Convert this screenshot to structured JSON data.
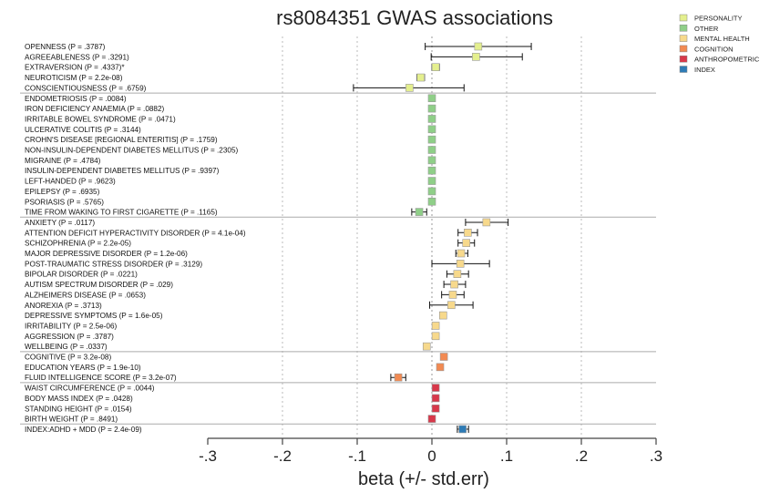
{
  "chart_data": {
    "type": "forest",
    "title": "rs8084351 GWAS associations",
    "xlabel": "beta (+/- std.err)",
    "xlim": [
      -0.3,
      0.3
    ],
    "xticks": [
      -0.3,
      -0.2,
      -0.1,
      0,
      0.1,
      0.2,
      0.3
    ],
    "xtick_labels": [
      "-.3",
      "-.2",
      "-.1",
      "0",
      ".1",
      ".2",
      ".3"
    ],
    "grid": "vertical dotted",
    "legend_position": "top-right",
    "categories": [
      {
        "name": "PERSONALITY",
        "color": "#e4ef8e"
      },
      {
        "name": "OTHER",
        "color": "#8fcf88"
      },
      {
        "name": "MENTAL HEALTH",
        "color": "#f7d98c"
      },
      {
        "name": "COGNITION",
        "color": "#f28a52"
      },
      {
        "name": "ANTHROPOMETRIC",
        "color": "#d8384a"
      },
      {
        "name": "INDEX",
        "color": "#2d7bb6"
      }
    ],
    "rows": [
      {
        "label": "OPENNESS  (P = .3787)",
        "cat": 0,
        "beta": 0.062,
        "lo": -0.009,
        "hi": 0.133
      },
      {
        "label": "AGREEABLENESS  (P = .3291)",
        "cat": 0,
        "beta": 0.059,
        "lo": -0.001,
        "hi": 0.121
      },
      {
        "label": "EXTRAVERSION  (P = .4337)*",
        "cat": 0,
        "beta": 0.005,
        "lo": 0.0,
        "hi": 0.01
      },
      {
        "label": "NEUROTICISM  (P = 2.2e-08)",
        "cat": 0,
        "beta": -0.015,
        "lo": -0.02,
        "hi": -0.01
      },
      {
        "label": "CONSCIENTIOUSNESS  (P = .6759)",
        "cat": 0,
        "beta": -0.03,
        "lo": -0.105,
        "hi": 0.043
      },
      {
        "label": "ENDOMETRIOSIS  (P = .0084)",
        "cat": 1,
        "beta": 0.0,
        "lo": -0.001,
        "hi": 0.001
      },
      {
        "label": "IRON DEFICIENCY ANAEMIA  (P = .0882)",
        "cat": 1,
        "beta": 0.0,
        "lo": -0.001,
        "hi": 0.001
      },
      {
        "label": "IRRITABLE BOWEL SYNDROME  (P = .0471)",
        "cat": 1,
        "beta": 0.0,
        "lo": -0.001,
        "hi": 0.001
      },
      {
        "label": "ULCERATIVE COLITIS  (P = .3144)",
        "cat": 1,
        "beta": 0.0,
        "lo": -0.001,
        "hi": 0.001
      },
      {
        "label": "CROHN'S DISEASE [REGIONAL ENTERITIS]  (P = .1759)",
        "cat": 1,
        "beta": 0.0,
        "lo": -0.001,
        "hi": 0.001
      },
      {
        "label": "NON-INSULIN-DEPENDENT DIABETES MELLITUS  (P = .2305)",
        "cat": 1,
        "beta": 0.0,
        "lo": -0.001,
        "hi": 0.001
      },
      {
        "label": "MIGRAINE  (P = .4784)",
        "cat": 1,
        "beta": 0.0,
        "lo": -0.001,
        "hi": 0.001
      },
      {
        "label": "INSULIN-DEPENDENT DIABETES MELLITUS  (P = .9397)",
        "cat": 1,
        "beta": 0.0,
        "lo": -0.001,
        "hi": 0.001
      },
      {
        "label": "LEFT-HANDED  (P = .9623)",
        "cat": 1,
        "beta": 0.0,
        "lo": -0.001,
        "hi": 0.001
      },
      {
        "label": "EPILEPSY  (P = .6935)",
        "cat": 1,
        "beta": 0.0,
        "lo": -0.001,
        "hi": 0.001
      },
      {
        "label": "PSORIASIS  (P = .5765)",
        "cat": 1,
        "beta": 0.0,
        "lo": -0.001,
        "hi": 0.001
      },
      {
        "label": "TIME FROM WAKING TO FIRST CIGARETTE  (P = .1165)",
        "cat": 1,
        "beta": -0.017,
        "lo": -0.027,
        "hi": -0.007
      },
      {
        "label": "ANXIETY  (P = .0117)",
        "cat": 2,
        "beta": 0.073,
        "lo": 0.045,
        "hi": 0.102
      },
      {
        "label": "ATTENTION DEFICIT HYPERACTIVITY DISORDER  (P = 4.1e-04)",
        "cat": 2,
        "beta": 0.048,
        "lo": 0.035,
        "hi": 0.061
      },
      {
        "label": "SCHIZOPHRENIA  (P = 2.2e-05)",
        "cat": 2,
        "beta": 0.046,
        "lo": 0.035,
        "hi": 0.057
      },
      {
        "label": "MAJOR DEPRESSIVE DISORDER  (P = 1.2e-06)",
        "cat": 2,
        "beta": 0.039,
        "lo": 0.032,
        "hi": 0.048
      },
      {
        "label": "POST-TRAUMATIC STRESS DISORDER  (P = .3129)",
        "cat": 2,
        "beta": 0.038,
        "lo": 0.0,
        "hi": 0.077
      },
      {
        "label": "BIPOLAR DISORDER  (P = .0221)",
        "cat": 2,
        "beta": 0.034,
        "lo": 0.02,
        "hi": 0.049
      },
      {
        "label": "AUTISM SPECTRUM DISORDER  (P = .029)",
        "cat": 2,
        "beta": 0.03,
        "lo": 0.016,
        "hi": 0.045
      },
      {
        "label": "ALZHEIMERS DISEASE  (P = .0653)",
        "cat": 2,
        "beta": 0.028,
        "lo": 0.013,
        "hi": 0.043
      },
      {
        "label": "ANOREXIA  (P = .3713)",
        "cat": 2,
        "beta": 0.026,
        "lo": -0.003,
        "hi": 0.055
      },
      {
        "label": "DEPRESSIVE SYMPTOMS  (P = 1.6e-05)",
        "cat": 2,
        "beta": 0.015,
        "lo": 0.011,
        "hi": 0.019
      },
      {
        "label": "IRRITABILITY  (P = 2.5e-06)",
        "cat": 2,
        "beta": 0.005,
        "lo": 0.003,
        "hi": 0.007
      },
      {
        "label": "AGGRESSION  (P = .3787)",
        "cat": 2,
        "beta": 0.005,
        "lo": 0.003,
        "hi": 0.007
      },
      {
        "label": "WELLBEING  (P = .0337)",
        "cat": 2,
        "beta": -0.007,
        "lo": -0.009,
        "hi": -0.005
      },
      {
        "label": "COGNITIVE  (P = 3.2e-08)",
        "cat": 3,
        "beta": 0.016,
        "lo": 0.013,
        "hi": 0.019
      },
      {
        "label": "EDUCATION YEARS  (P = 1.9e-10)",
        "cat": 3,
        "beta": 0.011,
        "lo": 0.009,
        "hi": 0.013
      },
      {
        "label": "FLUID INTELLIGENCE SCORE  (P = 3.2e-07)",
        "cat": 3,
        "beta": -0.045,
        "lo": -0.055,
        "hi": -0.035
      },
      {
        "label": "WAIST CIRCUMFERENCE  (P = .0044)",
        "cat": 4,
        "beta": 0.005,
        "lo": 0.004,
        "hi": 0.006
      },
      {
        "label": "BODY MASS INDEX  (P = .0428)",
        "cat": 4,
        "beta": 0.005,
        "lo": 0.004,
        "hi": 0.006
      },
      {
        "label": "STANDING HEIGHT  (P = .0154)",
        "cat": 4,
        "beta": 0.005,
        "lo": 0.004,
        "hi": 0.006
      },
      {
        "label": "BIRTH WEIGHT  (P = .8491)",
        "cat": 4,
        "beta": 0.0,
        "lo": -0.001,
        "hi": 0.001
      },
      {
        "label": "INDEX:ADHD + MDD  (P = 2.4e-09)",
        "cat": 5,
        "beta": 0.041,
        "lo": 0.034,
        "hi": 0.049
      }
    ]
  }
}
